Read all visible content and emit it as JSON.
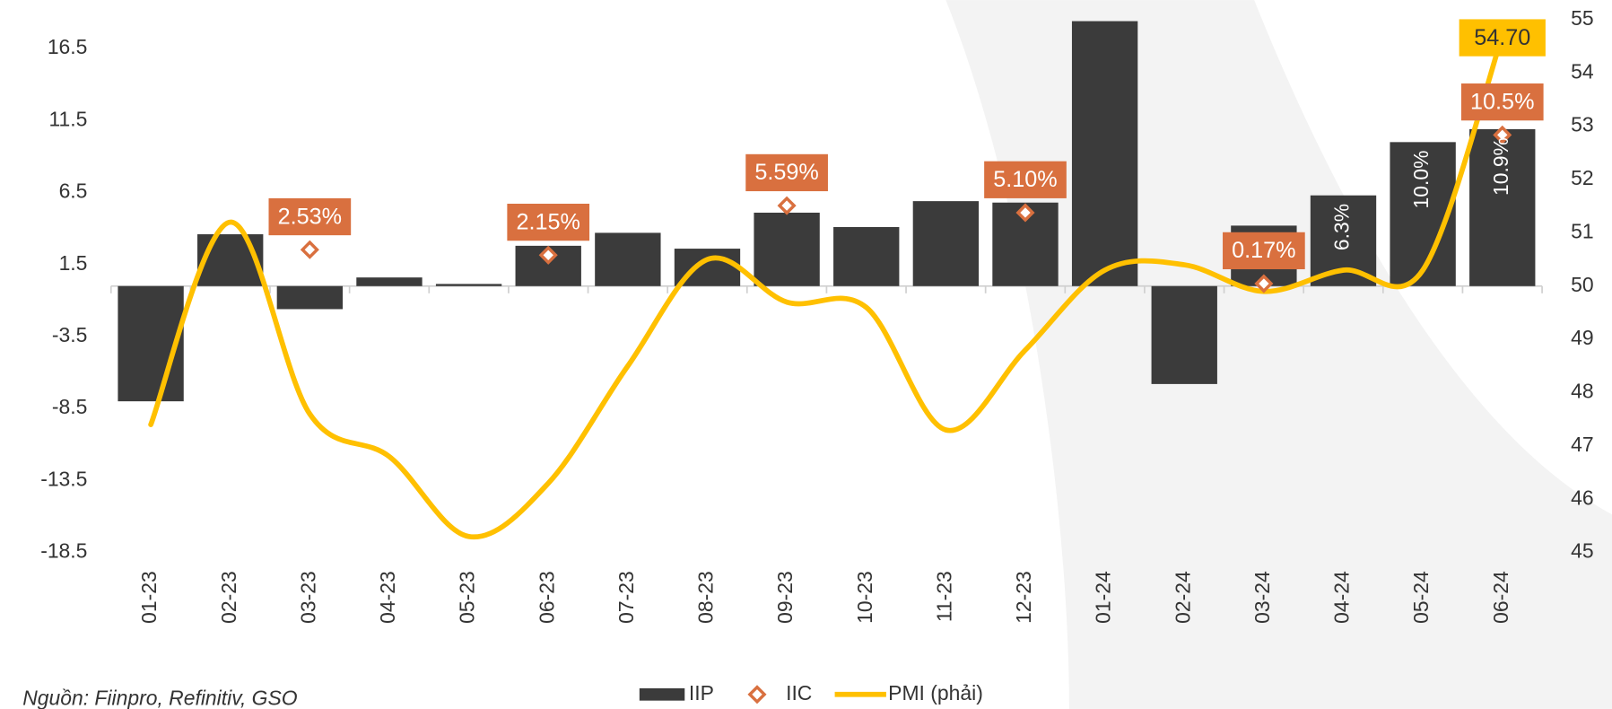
{
  "chart_data": {
    "type": "combo",
    "source": "Nguồn: Fiinpro, Refinitiv, GSO",
    "categories": [
      "01-23",
      "02-23",
      "03-23",
      "04-23",
      "05-23",
      "06-23",
      "07-23",
      "08-23",
      "09-23",
      "10-23",
      "11-23",
      "12-23",
      "01-24",
      "02-24",
      "03-24",
      "04-24",
      "05-24",
      "06-24"
    ],
    "ylim": [
      -18.5,
      18.5
    ],
    "yticks": [
      -18.5,
      -13.5,
      -8.5,
      -3.5,
      1.5,
      6.5,
      11.5,
      16.5
    ],
    "y2lim": [
      45,
      55
    ],
    "y2ticks": [
      45,
      46,
      47,
      48,
      49,
      50,
      51,
      52,
      53,
      54,
      55
    ],
    "series": [
      {
        "name": "IIP",
        "type": "bar",
        "color": "#3b3b3b",
        "values": [
          -8.0,
          3.6,
          -1.6,
          0.6,
          0.15,
          2.8,
          3.7,
          2.6,
          5.1,
          4.1,
          5.9,
          5.8,
          18.4,
          -6.8,
          4.2,
          6.3,
          10.0,
          10.9
        ],
        "value_labels": [
          null,
          null,
          null,
          null,
          null,
          null,
          null,
          null,
          null,
          null,
          null,
          null,
          null,
          null,
          null,
          "6.3%",
          "10.0%",
          "10.9%"
        ]
      },
      {
        "name": "IIC",
        "type": "scatter",
        "color": "#d9703f",
        "values": [
          null,
          null,
          2.53,
          null,
          null,
          2.15,
          null,
          null,
          5.59,
          null,
          null,
          5.1,
          null,
          null,
          0.17,
          null,
          null,
          10.5
        ],
        "value_labels": [
          null,
          null,
          "2.53%",
          null,
          null,
          "2.15%",
          null,
          null,
          "5.59%",
          null,
          null,
          "5.10%",
          null,
          null,
          "0.17%",
          null,
          null,
          "10.5%"
        ]
      },
      {
        "name": "PMI (phải)",
        "type": "line",
        "axis": "y2",
        "color": "#ffc000",
        "values": [
          47.4,
          51.2,
          47.6,
          46.8,
          45.3,
          46.3,
          48.5,
          50.5,
          49.7,
          49.6,
          47.3,
          48.8,
          50.3,
          50.4,
          49.9,
          50.3,
          50.3,
          54.7
        ],
        "value_labels": [
          null,
          null,
          null,
          null,
          null,
          null,
          null,
          null,
          null,
          null,
          null,
          null,
          null,
          null,
          null,
          null,
          null,
          "54.70"
        ]
      }
    ]
  }
}
